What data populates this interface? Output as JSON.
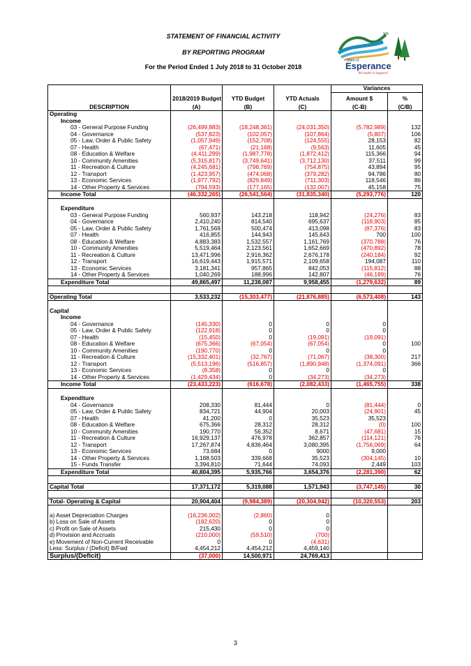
{
  "header": {
    "title": "STATEMENT OF FINANCIAL ACTIVITY",
    "subtitle": "BY REPORTING PROGRAM",
    "period": "For the Period Ended 1 July 2018 to 31 October 2018"
  },
  "logo": {
    "shire_text": "Shire of",
    "name": "Esperance",
    "tagline": "We make it happen!",
    "wa_text": "WA"
  },
  "table": {
    "variances_label": "Variances",
    "columns": [
      {
        "line1": "",
        "line2": "DESCRIPTION"
      },
      {
        "line1": "2018/2019 Budget",
        "line2": "(A)"
      },
      {
        "line1": "YTD Budget",
        "line2": "(B)"
      },
      {
        "line1": "YTD Actuals",
        "line2": "(C)"
      },
      {
        "line1": "Amount $",
        "line2": "(C-B)"
      },
      {
        "line1": "%",
        "line2": "(C/B)"
      }
    ],
    "rows": [
      {
        "t": "s",
        "label": "Operating",
        "lvl": 0
      },
      {
        "t": "s",
        "label": "Income",
        "lvl": 1
      },
      {
        "t": "r",
        "label": "03 - General Purpose Funding",
        "v": [
          "(26,499,883)",
          "(18,248,361)",
          "(24,031,350)",
          "(5,782,989)",
          "132"
        ]
      },
      {
        "t": "r",
        "label": "04 - Governance",
        "v": [
          "(537,823)",
          "(102,057)",
          "(107,864)",
          "(5,807)",
          "106"
        ]
      },
      {
        "t": "r",
        "label": "05 - Law, Order & Public Safety",
        "v": [
          "(1,057,949)",
          "(152,708)",
          "(124,555)",
          "28,153",
          "82"
        ]
      },
      {
        "t": "r",
        "label": "07 - Health",
        "v": [
          "(67,471)",
          "(21,168)",
          "(9,563)",
          "11,605",
          "45"
        ]
      },
      {
        "t": "r",
        "label": "08 - Education & Welfare",
        "v": [
          "(4,411,299)",
          "(1,987,778)",
          "(1,872,412)",
          "115,366",
          "94"
        ]
      },
      {
        "t": "r",
        "label": "10 - Community Amenities",
        "v": [
          "(5,315,817)",
          "(3,749,641)",
          "(3,712,130)",
          "37,511",
          "99"
        ]
      },
      {
        "t": "r",
        "label": "11 - Recreation & Culture",
        "v": [
          "(4,245,681)",
          "(798,769)",
          "(754,875)",
          "43,894",
          "95"
        ]
      },
      {
        "t": "r",
        "label": "12 - Transport",
        "v": [
          "(1,423,957)",
          "(474,068)",
          "(379,282)",
          "94,786",
          "80"
        ]
      },
      {
        "t": "r",
        "label": "13 - Economic Services",
        "v": [
          "(1,977,792)",
          "(829,849)",
          "(711,303)",
          "118,546",
          "86"
        ]
      },
      {
        "t": "r",
        "label": "14 - Other Property & Services",
        "v": [
          "(794,593)",
          "(177,165)",
          "(132,007)",
          "45,158",
          "75"
        ]
      },
      {
        "t": "t",
        "label": "Income Total",
        "v": [
          "(46,332,265)",
          "(26,541,564)",
          "(31,835,340)",
          "(5,293,776)",
          "120"
        ]
      },
      {
        "t": "b"
      },
      {
        "t": "s",
        "label": "Expenditure",
        "lvl": 1
      },
      {
        "t": "r",
        "label": "03 - General Purpose Funding",
        "v": [
          "560,937",
          "143,218",
          "118,942",
          "(24,276)",
          "83"
        ]
      },
      {
        "t": "r",
        "label": "04 - Governance",
        "v": [
          "2,410,240",
          "814,540",
          "695,637",
          "(118,903)",
          "85"
        ]
      },
      {
        "t": "r",
        "label": "05 - Law, Order & Public Safety",
        "v": [
          "1,761,569",
          "500,474",
          "413,098",
          "(87,376)",
          "83"
        ]
      },
      {
        "t": "r",
        "label": "07 - Health",
        "v": [
          "416,855",
          "144,943",
          "145,643",
          "700",
          "100"
        ]
      },
      {
        "t": "r",
        "label": "08 - Education & Welfare",
        "v": [
          "4,883,383",
          "1,532,557",
          "1,161,769",
          "(370,788)",
          "76"
        ]
      },
      {
        "t": "r",
        "label": "10 - Community Amenities",
        "v": [
          "5,519,464",
          "2,123,561",
          "1,652,669",
          "(470,892)",
          "78"
        ]
      },
      {
        "t": "r",
        "label": "11 - Recreation & Culture",
        "v": [
          "13,471,996",
          "2,916,362",
          "2,676,178",
          "(240,184)",
          "92"
        ]
      },
      {
        "t": "r",
        "label": "12 - Transport",
        "v": [
          "16,619,443",
          "1,915,571",
          "2,109,658",
          "194,087",
          "110"
        ]
      },
      {
        "t": "r",
        "label": "13 - Economic Services",
        "v": [
          "3,181,341",
          "957,865",
          "842,053",
          "(115,812)",
          "88"
        ]
      },
      {
        "t": "r",
        "label": "14 - Other Property & Services",
        "v": [
          "1,040,269",
          "188,996",
          "142,807",
          "(46,189)",
          "76"
        ]
      },
      {
        "t": "t",
        "label": "Expenditure Total",
        "v": [
          "49,865,497",
          "11,238,087",
          "9,958,455",
          "(1,279,632)",
          "89"
        ]
      },
      {
        "t": "b"
      },
      {
        "t": "g",
        "label": "Operating Total",
        "v": [
          "3,533,232",
          "(15,303,477)",
          "(21,876,885)",
          "(6,573,408)",
          "143"
        ]
      },
      {
        "t": "b"
      },
      {
        "t": "s",
        "label": "Capital",
        "lvl": 0
      },
      {
        "t": "s",
        "label": "Income",
        "lvl": 1
      },
      {
        "t": "r",
        "label": "04 - Governance",
        "v": [
          "(145,330)",
          "0",
          "0",
          "0",
          ""
        ]
      },
      {
        "t": "r",
        "label": "05 - Law, Order & Public Safety",
        "v": [
          "(122,918)",
          "0",
          "0",
          "0",
          ""
        ]
      },
      {
        "t": "r",
        "label": "07 - Health",
        "v": [
          "(15,450)",
          "0",
          "(19,091)",
          "(19,091)",
          ""
        ]
      },
      {
        "t": "r",
        "label": "08 - Education & Welfare",
        "v": [
          "(675,366)",
          "(67,054)",
          "(67,054)",
          "0",
          "100"
        ]
      },
      {
        "t": "r",
        "label": "10 - Community Amenities",
        "v": [
          "(190,770)",
          "0",
          "0",
          "0",
          ""
        ]
      },
      {
        "t": "r",
        "label": "11 - Recreation & Culture",
        "v": [
          "(15,332,401)",
          "(32,767)",
          "(71,067)",
          "(38,300)",
          "217"
        ]
      },
      {
        "t": "r",
        "label": "12 - Transport",
        "v": [
          "(5,513,196)",
          "(516,857)",
          "(1,890,948)",
          "(1,374,091)",
          "366"
        ]
      },
      {
        "t": "r",
        "label": "13 - Economic Services",
        "v": [
          "(8,358)",
          "0",
          "0",
          "0",
          ""
        ]
      },
      {
        "t": "r",
        "label": "14 - Other Property & Services",
        "v": [
          "(1,429,434)",
          "0",
          "(34,273)",
          "(34,273)",
          ""
        ]
      },
      {
        "t": "t",
        "label": "Income Total",
        "v": [
          "(23,433,223)",
          "(616,678)",
          "(2,082,433)",
          "(1,465,755)",
          "338"
        ]
      },
      {
        "t": "b"
      },
      {
        "t": "s",
        "label": "Expenditure",
        "lvl": 1
      },
      {
        "t": "r",
        "label": "04 - Governance",
        "v": [
          "208,330",
          "81,444",
          "0",
          "(81,444)",
          "0"
        ]
      },
      {
        "t": "r",
        "label": "05 - Law, Order & Public Safety",
        "v": [
          "834,721",
          "44,904",
          "20,003",
          "(24,901)",
          "45"
        ]
      },
      {
        "t": "r",
        "label": "07 - Health",
        "v": [
          "41,200",
          "0",
          "35,523",
          "35,523",
          ""
        ]
      },
      {
        "t": "r",
        "label": "08 - Education & Welfare",
        "v": [
          "675,366",
          "28,312",
          "28,312",
          "(0)",
          "100"
        ]
      },
      {
        "t": "r",
        "label": "10 - Community Amenities",
        "v": [
          "190,770",
          "56,352",
          "8,671",
          "(47,681)",
          "15"
        ]
      },
      {
        "t": "r",
        "label": "11 - Recreation & Culture",
        "v": [
          "16,929,137",
          "476,978",
          "362,857",
          "(114,121)",
          "76"
        ]
      },
      {
        "t": "r",
        "label": "12 - Transport",
        "v": [
          "17,267,874",
          "4,836,464",
          "3,080,395",
          "(1,756,069)",
          "64"
        ]
      },
      {
        "t": "r",
        "label": "13 - Economic Services",
        "v": [
          "73,684",
          "0",
          "9000",
          "9,000",
          ""
        ]
      },
      {
        "t": "r",
        "label": "14 - Other Property & Services",
        "v": [
          "1,188,503",
          "339,668",
          "35,523",
          "(304,145)",
          "10"
        ]
      },
      {
        "t": "r",
        "label": "15 - Funds Transfer",
        "v": [
          "3,394,810",
          "71,644",
          "74,093",
          "2,449",
          "103"
        ]
      },
      {
        "t": "t",
        "label": "Expenditure Total",
        "v": [
          "40,804,395",
          "5,935,766",
          "3,654,376",
          "(2,281,390)",
          "62"
        ]
      },
      {
        "t": "b"
      },
      {
        "t": "g",
        "label": "Capital Total",
        "v": [
          "17,371,172",
          "5,319,088",
          "1,571,943",
          "(3,747,145)",
          "30"
        ]
      },
      {
        "t": "b"
      },
      {
        "t": "g",
        "label": "Total- Operating & Capital",
        "v": [
          "20,904,404",
          "(9,984,389)",
          "(20,304,942)",
          "(10,320,553)",
          "203"
        ]
      },
      {
        "t": "b"
      },
      {
        "t": "a",
        "label": "a) Asset Depreciation Charges",
        "v": [
          "(16,236,002)",
          "(2,860)",
          "0",
          "",
          ""
        ]
      },
      {
        "t": "a",
        "label": "b) Loss on Sale of Assets",
        "v": [
          "(182,620)",
          "0",
          "0",
          "",
          ""
        ]
      },
      {
        "t": "a",
        "label": "c) Profit on Sale of Assets",
        "v": [
          "215,430",
          "0",
          "0",
          "",
          ""
        ]
      },
      {
        "t": "a",
        "label": "d) Provision and Accruals",
        "v": [
          "(210,000)",
          "(59,510)",
          "(700)",
          "",
          ""
        ]
      },
      {
        "t": "a",
        "label": "e) Movement of Non-Current Receivable",
        "v": [
          "0",
          "0",
          "(4,631)",
          "",
          ""
        ]
      },
      {
        "t": "a",
        "label": "Less: Surplus / (Deficit) B/Fwd",
        "v": [
          "4,454,212",
          "4,454,212",
          "4,459,140",
          "",
          ""
        ]
      },
      {
        "t": "f",
        "label": "Surplus/(Deficit)",
        "v": [
          "(37,000)",
          "14,500,971",
          "24,769,413",
          "",
          ""
        ]
      }
    ]
  },
  "page_number": "3"
}
